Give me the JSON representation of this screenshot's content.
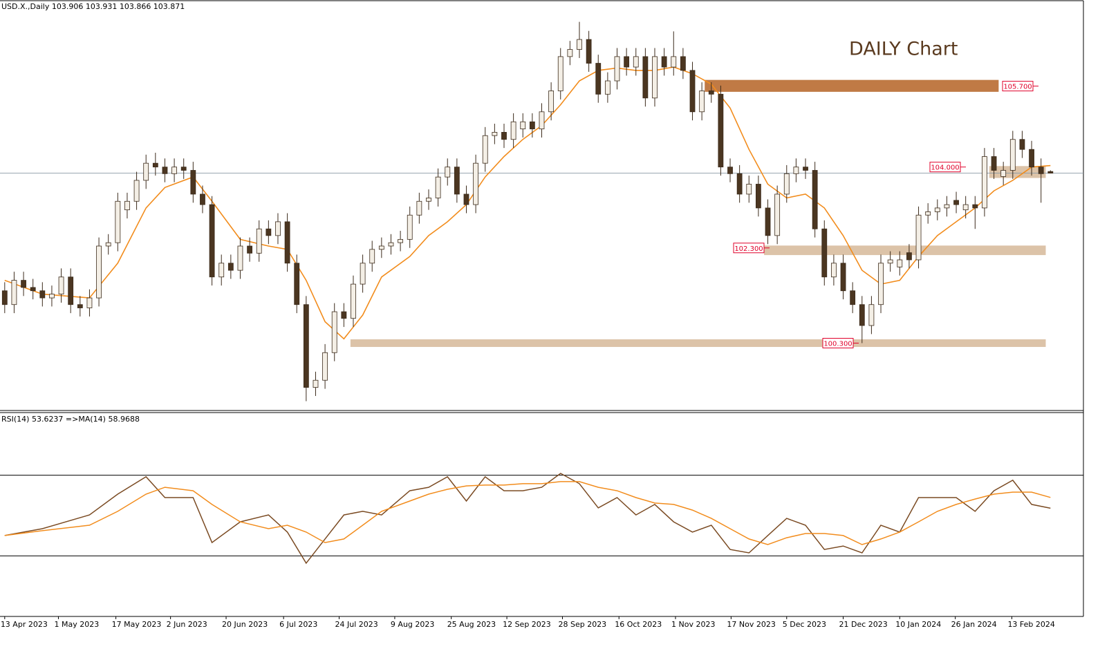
{
  "header": "USD.X.,Daily  103.906 103.931 103.866 103.871",
  "chart_data": [
    {
      "type": "candlestick",
      "title": "DAILY Chart",
      "open": [
        101.4,
        101.11,
        101.62,
        101.47,
        101.4,
        101.25,
        101.33,
        101.69,
        101.11,
        101.04,
        101.25,
        102.34,
        102.41,
        103.1,
        103.28,
        103.72,
        104.08,
        104.0,
        103.86,
        104.0,
        103.93,
        103.43,
        103.21,
        101.69,
        101.98,
        101.83,
        102.34,
        102.19,
        102.7,
        102.56,
        102.85,
        101.98,
        101.11,
        99.37,
        99.52,
        100.1,
        100.96,
        100.82,
        101.54,
        101.98,
        102.27,
        102.34,
        102.41,
        102.48,
        102.99,
        103.28,
        103.35,
        103.79,
        104.0,
        103.43,
        103.21,
        104.08,
        104.66,
        104.73,
        104.58,
        104.8,
        104.95,
        104.8,
        105.16,
        105.6,
        106.32,
        106.47,
        106.68,
        106.18,
        105.53,
        105.81,
        106.32,
        106.1,
        106.32,
        105.45,
        106.32,
        106.1,
        106.32,
        106.03,
        105.16,
        105.6,
        105.53,
        104.0,
        103.86,
        103.43,
        103.64,
        103.14,
        102.56,
        103.43,
        103.86,
        104.0,
        103.93,
        102.7,
        101.69,
        101.98,
        101.4,
        101.11,
        100.67,
        101.11,
        101.98,
        101.9,
        102.2,
        102.05,
        102.99,
        103.06,
        103.14,
        103.3,
        103.1,
        103.21,
        103.14,
        104.22,
        103.8,
        103.93,
        104.58,
        104.37,
        104.0,
        103.906
      ],
      "high": [
        101.58,
        101.8,
        101.8,
        101.65,
        101.58,
        101.51,
        101.87,
        101.87,
        101.29,
        101.43,
        102.52,
        102.59,
        103.46,
        103.46,
        103.9,
        104.26,
        104.3,
        104.18,
        104.18,
        104.18,
        104.11,
        103.61,
        103.39,
        102.16,
        102.16,
        102.52,
        102.52,
        102.88,
        102.88,
        103.03,
        103.03,
        102.16,
        101.29,
        99.7,
        100.28,
        101.14,
        101.14,
        101.72,
        102.16,
        102.45,
        102.52,
        102.59,
        102.66,
        103.17,
        103.46,
        103.53,
        103.97,
        104.18,
        104.18,
        103.61,
        104.26,
        104.84,
        104.91,
        104.91,
        105.13,
        105.13,
        105.13,
        105.34,
        105.78,
        106.5,
        106.65,
        107.05,
        106.86,
        106.36,
        105.99,
        106.5,
        106.5,
        106.5,
        106.5,
        106.5,
        106.5,
        106.85,
        106.5,
        106.21,
        105.78,
        105.78,
        105.71,
        104.18,
        104.04,
        103.82,
        103.82,
        103.32,
        103.61,
        104.04,
        104.18,
        104.18,
        104.11,
        102.88,
        102.16,
        102.16,
        101.58,
        101.29,
        101.29,
        102.16,
        102.23,
        102.23,
        102.38,
        103.17,
        103.24,
        103.32,
        103.39,
        103.48,
        103.39,
        103.39,
        104.4,
        104.4,
        104.11,
        104.76,
        104.76,
        104.55,
        104.18,
        103.931
      ],
      "low": [
        100.93,
        100.93,
        101.29,
        101.22,
        101.07,
        101.07,
        101.15,
        100.93,
        100.86,
        100.86,
        101.07,
        102.16,
        102.23,
        102.92,
        103.1,
        103.54,
        103.82,
        103.68,
        103.68,
        103.75,
        103.25,
        103.03,
        101.51,
        101.51,
        101.65,
        101.65,
        102.01,
        102.01,
        102.38,
        102.38,
        101.8,
        100.93,
        99.08,
        99.19,
        99.34,
        99.92,
        100.64,
        100.64,
        101.36,
        101.8,
        102.09,
        102.16,
        102.23,
        102.3,
        102.81,
        103.1,
        103.17,
        103.61,
        103.25,
        103.03,
        103.03,
        103.9,
        104.48,
        104.4,
        104.4,
        104.62,
        104.62,
        104.62,
        104.98,
        105.42,
        106.14,
        106.29,
        106.0,
        105.35,
        105.35,
        105.63,
        105.92,
        105.92,
        105.27,
        105.27,
        105.92,
        105.92,
        105.85,
        104.98,
        104.98,
        105.35,
        103.82,
        103.68,
        103.25,
        103.25,
        102.96,
        102.38,
        102.38,
        103.25,
        103.68,
        103.75,
        102.52,
        101.51,
        101.51,
        101.22,
        100.93,
        100.3,
        100.49,
        100.93,
        101.8,
        101.72,
        101.87,
        101.87,
        102.81,
        102.88,
        102.96,
        103.03,
        102.92,
        102.7,
        102.96,
        103.75,
        103.62,
        103.75,
        104.19,
        103.82,
        103.25,
        103.866
      ],
      "close": [
        101.11,
        101.62,
        101.47,
        101.4,
        101.25,
        101.33,
        101.69,
        101.11,
        101.04,
        101.25,
        102.34,
        102.41,
        103.28,
        103.28,
        103.72,
        104.08,
        104.0,
        103.86,
        104.0,
        103.93,
        103.43,
        103.21,
        101.69,
        101.98,
        101.83,
        102.34,
        102.19,
        102.7,
        102.56,
        102.85,
        101.98,
        101.11,
        99.37,
        99.52,
        100.1,
        100.96,
        100.82,
        101.54,
        101.98,
        102.27,
        102.34,
        102.41,
        102.48,
        102.99,
        103.28,
        103.35,
        103.79,
        104.0,
        103.43,
        103.21,
        104.08,
        104.66,
        104.73,
        104.58,
        104.95,
        104.95,
        104.8,
        105.16,
        105.6,
        106.32,
        106.47,
        106.68,
        106.18,
        105.53,
        105.81,
        106.32,
        106.1,
        106.32,
        105.45,
        106.32,
        106.1,
        106.32,
        106.03,
        105.16,
        105.6,
        105.53,
        104.0,
        103.86,
        103.43,
        103.64,
        103.14,
        102.56,
        103.43,
        103.86,
        104.0,
        103.93,
        102.7,
        101.69,
        101.98,
        101.4,
        101.11,
        100.67,
        101.11,
        101.98,
        102.05,
        102.05,
        102.05,
        102.99,
        103.06,
        103.14,
        103.21,
        103.21,
        103.21,
        103.14,
        104.22,
        103.93,
        103.93,
        104.58,
        104.37,
        104.0,
        103.86,
        103.871
      ],
      "up_color": "#f4efe6",
      "down_color": "#4b3621",
      "wick_color": "#3b2a1a",
      "ma": {
        "color": "#f28c1c",
        "x": [
          0,
          4,
          9,
          12,
          15,
          17,
          20,
          22,
          25,
          28,
          30,
          32,
          34,
          36,
          38,
          40,
          43,
          45,
          47,
          49,
          51,
          53,
          55,
          57,
          59,
          61,
          63,
          65,
          67,
          69,
          71,
          73,
          75,
          77,
          79,
          81,
          83,
          85,
          87,
          89,
          91,
          93,
          95,
          97,
          99,
          101,
          103,
          105,
          107,
          109,
          111
        ],
        "values": [
          101.62,
          101.33,
          101.25,
          101.98,
          103.14,
          103.57,
          103.79,
          103.28,
          102.48,
          102.34,
          102.27,
          101.62,
          100.75,
          100.39,
          100.89,
          101.69,
          102.12,
          102.56,
          102.85,
          103.21,
          103.79,
          104.22,
          104.58,
          104.87,
          105.31,
          105.81,
          106.03,
          106.08,
          106.03,
          106.03,
          106.1,
          105.96,
          105.74,
          105.24,
          104.37,
          103.64,
          103.35,
          103.43,
          103.14,
          102.56,
          101.83,
          101.54,
          101.62,
          102.12,
          102.56,
          102.85,
          103.14,
          103.5,
          103.72,
          104.0,
          104.03
        ]
      },
      "zones": [
        {
          "value": 105.7,
          "label": "105.700",
          "range": [
            105.58,
            105.83
          ],
          "x_range": [
            74.3,
            105.5
          ],
          "color": "#c07a45"
        },
        {
          "value": 104.0,
          "label": "104.000",
          "range": [
            103.77,
            104.02
          ],
          "x_range": [
            104.5,
            110.5
          ],
          "color": "#dcc3a8"
        },
        {
          "value": 102.3,
          "label": "102.300",
          "range": [
            102.15,
            102.35
          ],
          "x_range": [
            80.6,
            110.5
          ],
          "color": "#dcc3a8"
        },
        {
          "value": 100.3,
          "label": "100.300",
          "range": [
            100.22,
            100.38
          ],
          "x_range": [
            36.7,
            110.5
          ],
          "color": "#dcc3a8"
        }
      ],
      "ylim": [
        98.87,
        107.48
      ],
      "xlim": [
        -0.5,
        114.5
      ],
      "xticks": [
        {
          "value": 0,
          "label": "13 Apr 2023"
        },
        {
          "value": 5.7,
          "label": "1 May 2023"
        },
        {
          "value": 11.8,
          "label": "17 May 2023"
        },
        {
          "value": 17.6,
          "label": "2 Jun 2023"
        },
        {
          "value": 23.5,
          "label": "20 Jun 2023"
        },
        {
          "value": 29.6,
          "label": "6 Jul 2023"
        },
        {
          "value": 35.5,
          "label": "24 Jul 2023"
        },
        {
          "value": 41.4,
          "label": "9 Aug 2023"
        },
        {
          "value": 47.4,
          "label": "25 Aug 2023"
        },
        {
          "value": 53.3,
          "label": "12 Sep 2023"
        },
        {
          "value": 59.2,
          "label": "28 Sep 2023"
        },
        {
          "value": 65.2,
          "label": "16 Oct 2023"
        },
        {
          "value": 71.2,
          "label": "1 Nov 2023"
        },
        {
          "value": 77.1,
          "label": "17 Nov 2023"
        },
        {
          "value": 83.0,
          "label": "5 Dec 2023"
        },
        {
          "value": 89.0,
          "label": "21 Dec 2023"
        },
        {
          "value": 95.0,
          "label": "10 Jan 2024"
        },
        {
          "value": 100.9,
          "label": "26 Jan 2024"
        },
        {
          "value": 106.9,
          "label": "13 Feb 2024"
        }
      ]
    },
    {
      "type": "line",
      "title": "RSI(14) 53.6237  =>MA(14) 58.9688",
      "x": [
        0,
        4,
        9,
        12,
        15,
        17,
        20,
        22,
        25,
        28,
        30,
        32,
        34,
        36,
        38,
        40,
        43,
        45,
        47,
        49,
        51,
        53,
        55,
        57,
        59,
        61,
        63,
        65,
        67,
        69,
        71,
        73,
        75,
        77,
        79,
        81,
        83,
        85,
        87,
        89,
        91,
        93,
        95,
        97,
        99,
        101,
        103,
        105,
        107,
        109,
        111
      ],
      "series": [
        {
          "color": "#7a4a22",
          "values": [
            40.1,
            43.5,
            50.3,
            60.6,
            69.2,
            58.9,
            58.9,
            36.6,
            46.9,
            50.3,
            41.8,
            26.4,
            38.4,
            50.3,
            52.1,
            50.3,
            62.3,
            64.0,
            69.2,
            57.2,
            69.2,
            62.3,
            62.3,
            64.0,
            70.9,
            65.8,
            53.8,
            58.9,
            50.3,
            55.5,
            46.9,
            41.8,
            45.2,
            33.2,
            31.5,
            40.1,
            48.6,
            45.2,
            33.2,
            34.9,
            31.5,
            45.2,
            41.8,
            58.9,
            58.9,
            58.9,
            52.1,
            62.3,
            67.5,
            55.5,
            53.6237
          ]
        },
        {
          "color": "#f28c1c",
          "values": [
            40.1,
            42.5,
            45.2,
            52.1,
            60.6,
            64.0,
            62.3,
            55.5,
            46.9,
            43.5,
            45.2,
            41.8,
            36.6,
            38.4,
            45.2,
            52.1,
            57.2,
            60.6,
            63.0,
            64.7,
            65.1,
            65.1,
            65.8,
            65.8,
            66.8,
            66.8,
            64.0,
            62.3,
            58.9,
            56.2,
            55.5,
            52.7,
            48.6,
            43.5,
            38.4,
            35.6,
            39.0,
            41.1,
            41.1,
            40.1,
            35.6,
            38.4,
            41.8,
            46.9,
            52.1,
            55.5,
            58.2,
            60.6,
            61.6,
            61.6,
            58.9688
          ]
        }
      ],
      "levels": [
        70,
        30
      ],
      "ylim": [
        0,
        100
      ]
    }
  ]
}
